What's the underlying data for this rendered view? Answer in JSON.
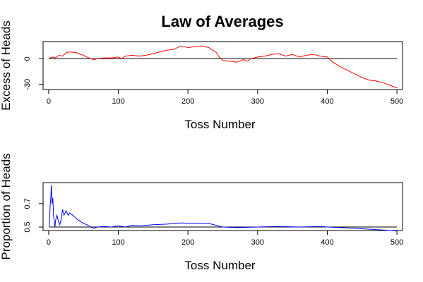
{
  "figure": {
    "title": "Law of Averages"
  },
  "chart_data": [
    {
      "type": "line",
      "title": "Law of Averages",
      "xlabel": "Toss Number",
      "ylabel": "Excess of Heads",
      "xlim": [
        -8,
        508
      ],
      "ylim": [
        -36,
        20
      ],
      "xticks": [
        0,
        100,
        200,
        300,
        400,
        500
      ],
      "yticks": [
        -30,
        0
      ],
      "reference_line": 0,
      "grid": false,
      "series": [
        {
          "color": "#ff0000",
          "x": [
            0,
            5,
            10,
            15,
            20,
            25,
            30,
            40,
            50,
            55,
            60,
            65,
            70,
            80,
            90,
            100,
            105,
            110,
            120,
            130,
            140,
            150,
            160,
            170,
            180,
            190,
            195,
            200,
            210,
            220,
            230,
            235,
            240,
            245,
            250,
            260,
            270,
            280,
            285,
            290,
            300,
            310,
            320,
            330,
            340,
            350,
            360,
            370,
            380,
            390,
            400,
            405,
            410,
            420,
            430,
            440,
            450,
            460,
            470,
            480,
            490,
            500
          ],
          "y": [
            0,
            2,
            1,
            4,
            3,
            7,
            8,
            7,
            4,
            2,
            0,
            -1,
            0,
            1,
            1,
            2,
            0,
            3,
            4,
            3,
            4,
            6,
            8,
            10,
            11,
            15,
            14,
            13,
            14,
            15,
            13,
            10,
            8,
            2,
            -2,
            -3,
            -4,
            -1,
            -3,
            0,
            2,
            3,
            5,
            6,
            3,
            5,
            2,
            4,
            5,
            3,
            2,
            -2,
            -5,
            -10,
            -14,
            -18,
            -22,
            -25,
            -26,
            -28,
            -31,
            -34
          ]
        }
      ]
    },
    {
      "type": "line",
      "xlabel": "Toss Number",
      "ylabel": "Proportion of Heads",
      "xlim": [
        -8,
        508
      ],
      "ylim": [
        0.47,
        0.88
      ],
      "xticks": [
        0,
        100,
        200,
        300,
        400,
        500
      ],
      "yticks": [
        0.5,
        0.7
      ],
      "reference_line": 0.5,
      "grid": false,
      "series": [
        {
          "color": "#0000ff",
          "x": [
            1,
            2,
            3,
            4,
            5,
            6,
            7,
            8,
            9,
            10,
            12,
            14,
            16,
            18,
            20,
            22,
            25,
            28,
            30,
            35,
            40,
            45,
            50,
            55,
            60,
            65,
            70,
            80,
            90,
            100,
            110,
            120,
            130,
            150,
            170,
            190,
            210,
            230,
            250,
            270,
            300,
            330,
            360,
            390,
            400,
            420,
            450,
            480,
            500
          ],
          "y": [
            0.5,
            0.67,
            0.75,
            0.86,
            0.7,
            0.75,
            0.6,
            0.55,
            0.5,
            0.56,
            0.6,
            0.55,
            0.52,
            0.57,
            0.65,
            0.6,
            0.64,
            0.6,
            0.62,
            0.6,
            0.57,
            0.55,
            0.53,
            0.52,
            0.5,
            0.49,
            0.5,
            0.505,
            0.5,
            0.51,
            0.5,
            0.515,
            0.51,
            0.52,
            0.525,
            0.535,
            0.53,
            0.53,
            0.5,
            0.495,
            0.5,
            0.505,
            0.5,
            0.505,
            0.5,
            0.495,
            0.485,
            0.475,
            0.465
          ]
        }
      ]
    }
  ]
}
